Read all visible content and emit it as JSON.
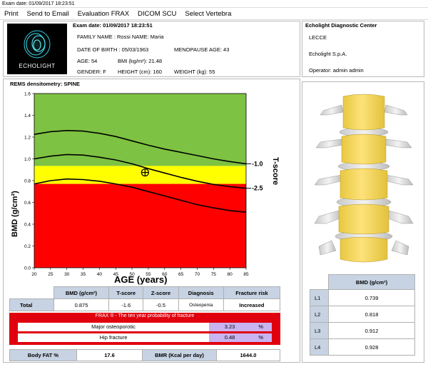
{
  "window": {
    "title": "Exam date: 01/09/2017   18:23:51"
  },
  "menu": [
    "Print",
    "Send to Email",
    "Evaluation FRAX",
    "DICOM SCU",
    "Select Vertebra"
  ],
  "logo": {
    "text": "ECHOLIGHT"
  },
  "exam": {
    "title": "Exam date: 01/09/2017   18:23:51",
    "family_name": "FAMILY NAME : Rossi NAME: Maria",
    "dob": "DATE OF BIRTH : 05/03/1963",
    "menopause": "MENOPAUSE AGE: 43",
    "age": "AGE: 54",
    "bmi": "BMI (kg/m²): 21.48",
    "gender": "GENDER: F",
    "height": "HEIGHT (cm): 160",
    "weight": "WEIGHT (kg): 55"
  },
  "center": {
    "title": "Echolight Diagnostic Center",
    "city": "LECCE",
    "company": "Echolight S.p.A.",
    "operator": "Operator: admin admin"
  },
  "chart_title": "REMS densitometry: SPINE",
  "chart_data": {
    "type": "line",
    "title": "REMS densitometry: SPINE",
    "xlabel": "AGE (years)",
    "ylabel": "BMD (g/cm²)",
    "right_label": "T-score",
    "xlim": [
      20,
      85
    ],
    "ylim": [
      0.0,
      1.6
    ],
    "xticks": [
      20,
      25,
      30,
      35,
      40,
      45,
      50,
      55,
      60,
      65,
      70,
      75,
      80,
      85
    ],
    "yticks": [
      0.0,
      0.2,
      0.4,
      0.6,
      0.8,
      1.0,
      1.2,
      1.4,
      1.6
    ],
    "xtick_labels": [
      "20",
      "25",
      "30",
      "35",
      "40",
      "45",
      "50",
      "55",
      "60",
      "65",
      "70",
      "75",
      "80",
      "85"
    ],
    "ytick_labels": [
      "0.0",
      "0.2",
      "0.4",
      "0.6",
      "0.8",
      "1.0",
      "1.2",
      "1.4",
      "1.6"
    ],
    "zones": [
      {
        "name": "green",
        "from": 0.935,
        "to": 1.6,
        "color": "#7dc242"
      },
      {
        "name": "yellow",
        "from": 0.77,
        "to": 0.935,
        "color": "#ffff00"
      },
      {
        "name": "red",
        "from": 0.0,
        "to": 0.77,
        "color": "#ff0000"
      }
    ],
    "series": [
      {
        "x": [
          20,
          25,
          30,
          35,
          40,
          45,
          50,
          55,
          60,
          65,
          70,
          75,
          80,
          85
        ],
        "y": [
          1.225,
          1.25,
          1.26,
          1.255,
          1.235,
          1.205,
          1.165,
          1.125,
          1.09,
          1.06,
          1.03,
          1.0,
          0.975,
          0.955
        ]
      },
      {
        "x": [
          20,
          25,
          30,
          35,
          40,
          45,
          50,
          55,
          60,
          65,
          70,
          75,
          80,
          85
        ],
        "y": [
          1.0,
          1.025,
          1.04,
          1.035,
          1.015,
          0.99,
          0.955,
          0.91,
          0.87,
          0.83,
          0.795,
          0.765,
          0.745,
          0.73
        ]
      },
      {
        "x": [
          20,
          25,
          30,
          35,
          40,
          45,
          50,
          55,
          60,
          65,
          70,
          75,
          80,
          85
        ],
        "y": [
          0.77,
          0.8,
          0.815,
          0.81,
          0.795,
          0.77,
          0.74,
          0.7,
          0.66,
          0.62,
          0.58,
          0.55,
          0.525,
          0.51
        ]
      }
    ],
    "tscore_labels": [
      {
        "text": "-1.0",
        "y": 0.955
      },
      {
        "text": "-2.5",
        "y": 0.73
      }
    ],
    "patient_point": {
      "x": 54,
      "y": 0.875
    }
  },
  "results": {
    "headers": [
      "",
      "BMD (g/cm²)",
      "T-score",
      "Z-score",
      "Diagnosis",
      "Fracture risk"
    ],
    "row": [
      "Total",
      "0.875",
      "-1.6",
      "-0.5",
      "Osteopenia",
      "Increased"
    ]
  },
  "frax": {
    "title": "FRAX ® - The ten year probability of fracture",
    "major_label": "Major osteoporotic",
    "major_value": "3.23",
    "hip_label": "Hip fracture",
    "hip_value": "0.48",
    "unit": "%"
  },
  "bottom": {
    "fat_label": "Body FAT %",
    "fat_value": "17.6",
    "bmr_label": "BMR (Kcal per day)",
    "bmr_value": "1644.0"
  },
  "bmd_table": {
    "header": "BMD (g/cm²)",
    "rows": [
      {
        "level": "L1",
        "value": "0.739"
      },
      {
        "level": "L2",
        "value": "0.818"
      },
      {
        "level": "L3",
        "value": "0.912"
      },
      {
        "level": "L4",
        "value": "0.928"
      }
    ]
  }
}
